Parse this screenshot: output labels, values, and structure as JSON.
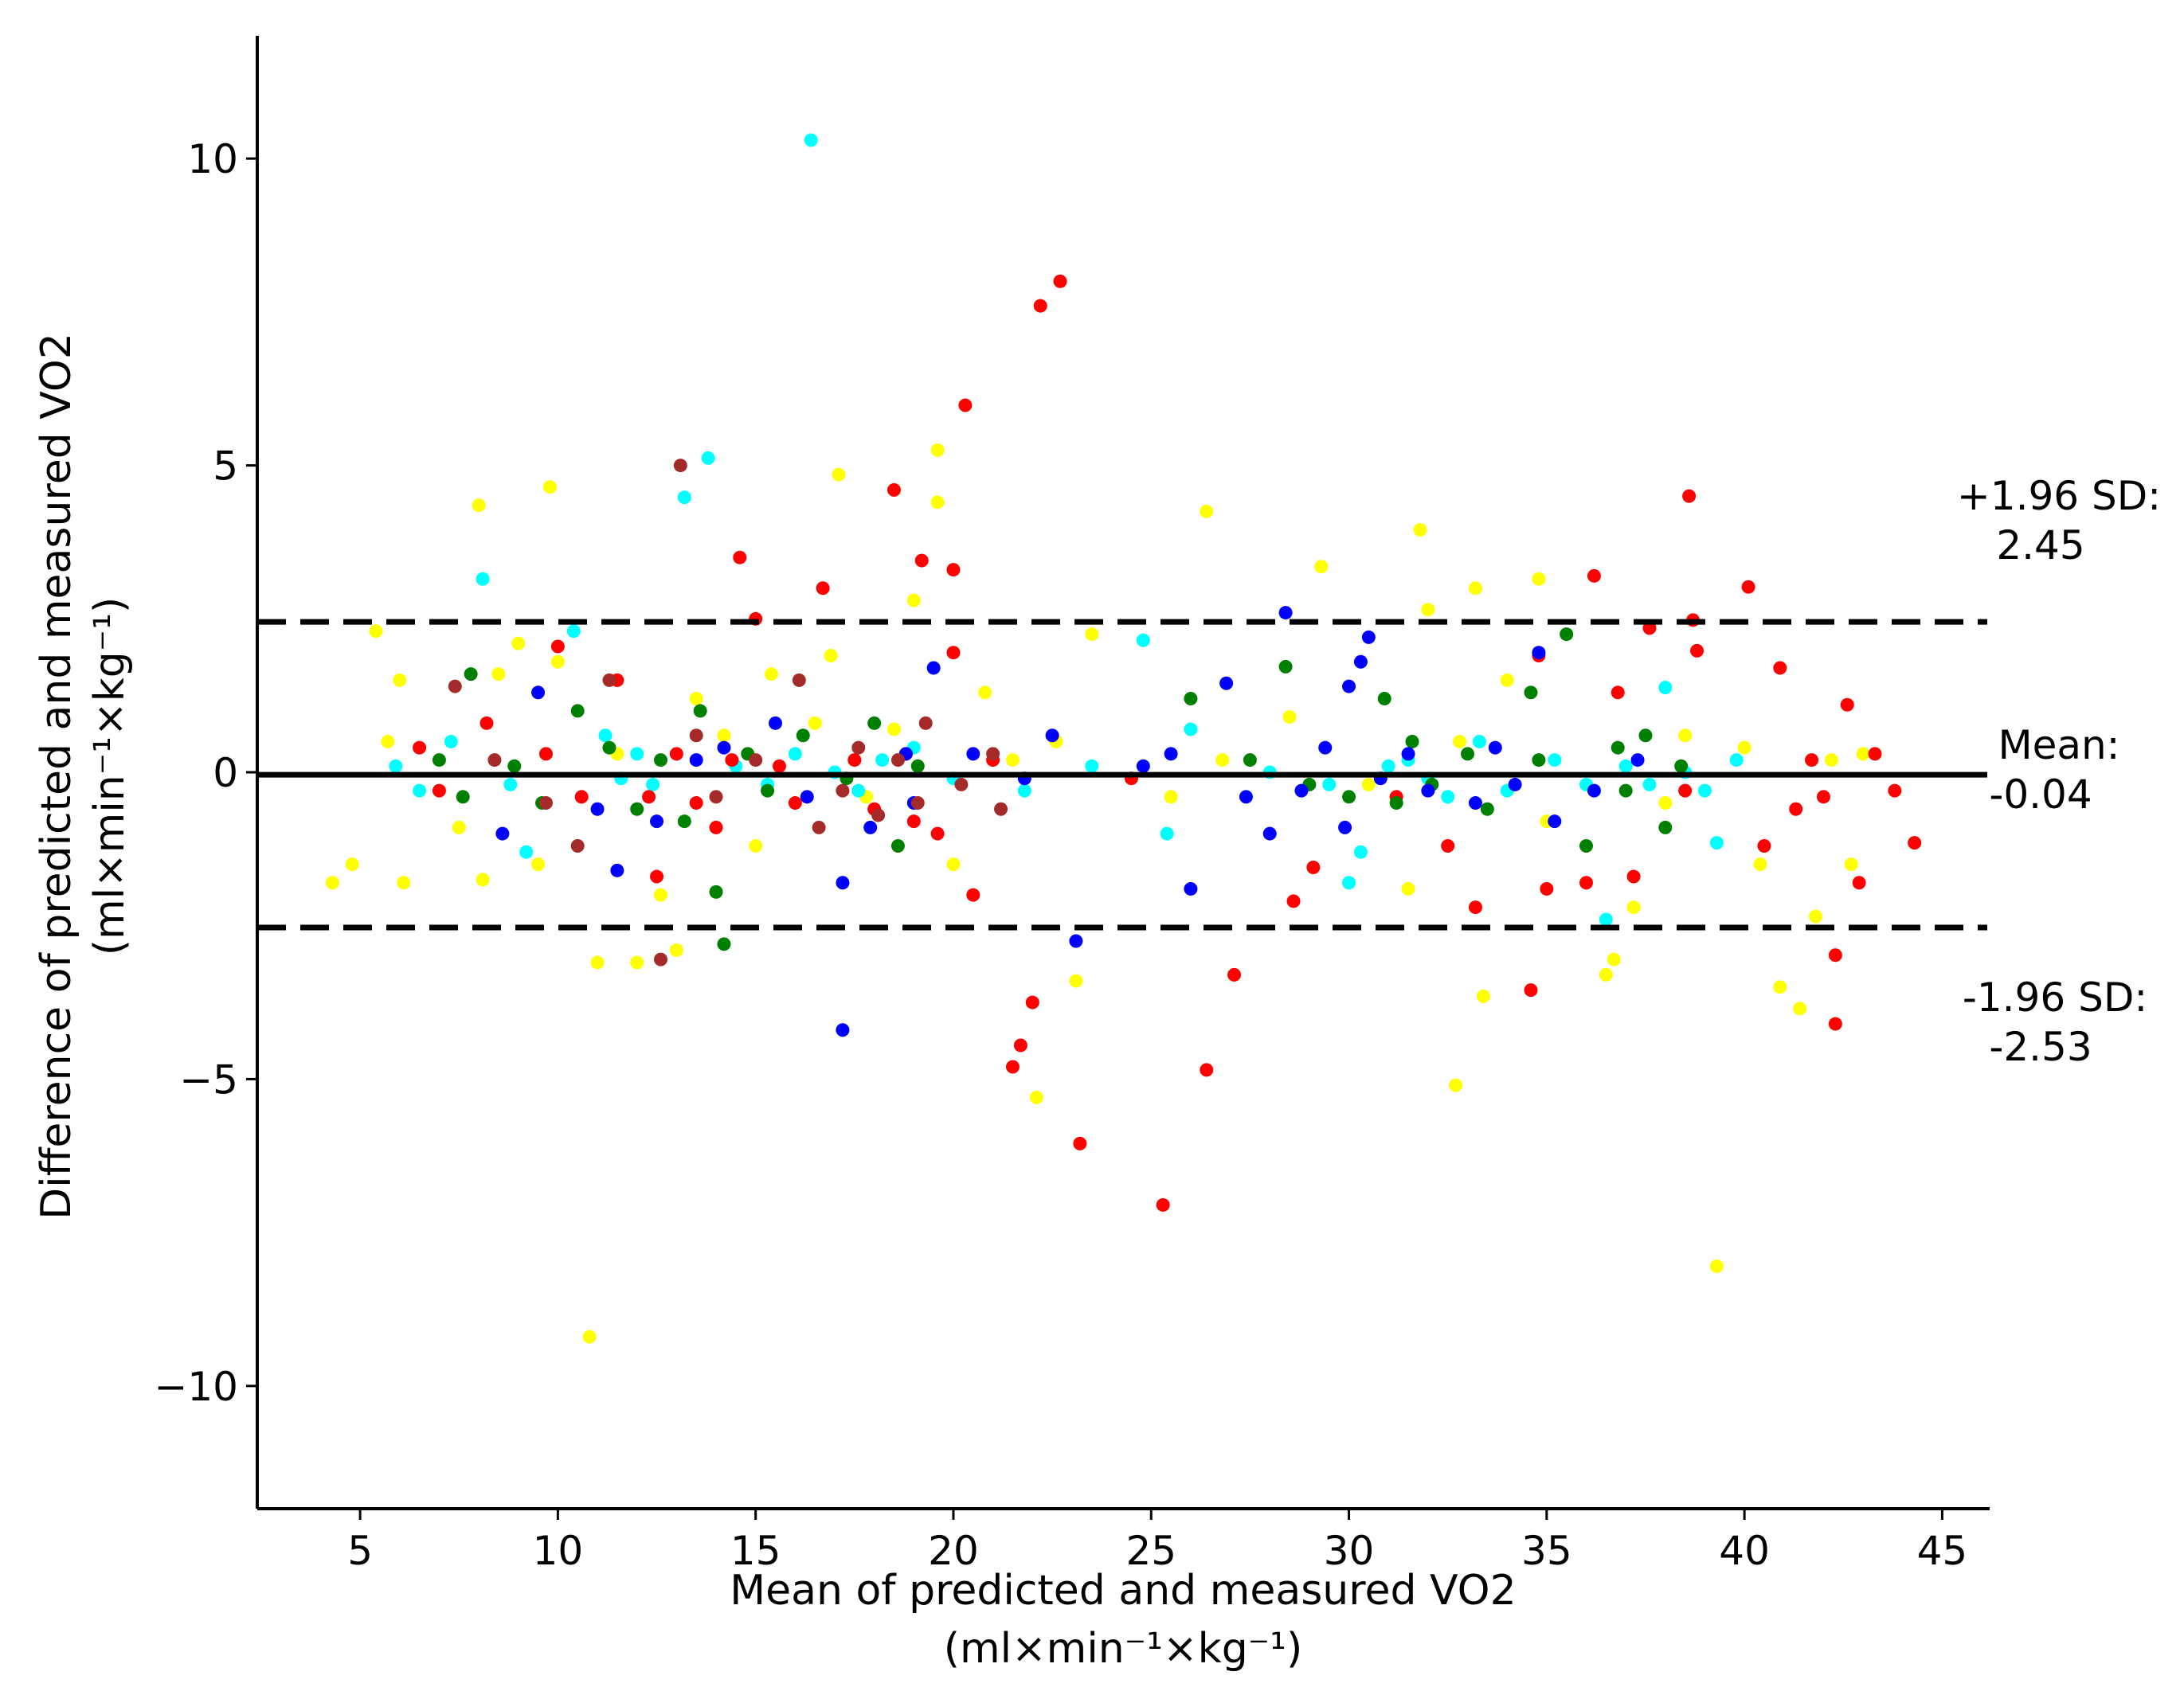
{
  "chart_data": {
    "type": "scatter",
    "title": "",
    "xlabel_line1": "Mean of predicted and measured VO2",
    "xlabel_line2": "(ml×min⁻¹×kg⁻¹)",
    "ylabel_line1": "Difference of predicted and measured VO2",
    "ylabel_line2": "(ml×min⁻¹×kg⁻¹)",
    "xlim": [
      2.4,
      46.2
    ],
    "ylim": [
      -12,
      12
    ],
    "xticks": [
      5,
      10,
      15,
      20,
      25,
      30,
      35,
      40,
      45
    ],
    "yticks": [
      10,
      5,
      0,
      -5,
      -10
    ],
    "ytick_labels": [
      "10",
      "5",
      "0",
      "−5",
      "−10"
    ],
    "grid": false,
    "reference_lines": [
      {
        "name": "upper-loa",
        "value": 2.45,
        "style": "dashed",
        "label_line1": "+1.96 SD:",
        "label_line2": "2.45"
      },
      {
        "name": "mean",
        "value": -0.04,
        "style": "solid",
        "label_line1": "Mean:",
        "label_line2": "-0.04"
      },
      {
        "name": "lower-loa",
        "value": -2.53,
        "style": "dashed",
        "label_line1": "-1.96 SD:",
        "label_line2": "-2.53"
      }
    ],
    "series": [
      {
        "name": "yellow",
        "color": "#ffff00",
        "points": [
          [
            4.3,
            -1.8
          ],
          [
            4.8,
            -1.5
          ],
          [
            5.4,
            2.3
          ],
          [
            5.7,
            0.5
          ],
          [
            6.0,
            1.5
          ],
          [
            6.1,
            -1.8
          ],
          [
            7.5,
            -0.9
          ],
          [
            8.0,
            4.35
          ],
          [
            8.1,
            -1.75
          ],
          [
            8.5,
            1.6
          ],
          [
            9.0,
            2.1
          ],
          [
            9.5,
            -1.5
          ],
          [
            9.8,
            4.65
          ],
          [
            10.0,
            1.8
          ],
          [
            11.0,
            -3.1
          ],
          [
            10.8,
            -9.2
          ],
          [
            11.5,
            0.3
          ],
          [
            12.0,
            -3.1
          ],
          [
            12.6,
            -2.0
          ],
          [
            13.0,
            -2.9
          ],
          [
            13.5,
            1.2
          ],
          [
            14.2,
            0.6
          ],
          [
            15.0,
            -1.2
          ],
          [
            15.4,
            1.6
          ],
          [
            16.5,
            0.8
          ],
          [
            16.9,
            1.9
          ],
          [
            17.1,
            4.85
          ],
          [
            17.8,
            -0.4
          ],
          [
            18.5,
            0.7
          ],
          [
            19.0,
            2.8
          ],
          [
            19.6,
            5.25
          ],
          [
            19.6,
            4.4
          ],
          [
            20.0,
            -1.5
          ],
          [
            20.8,
            1.3
          ],
          [
            21.5,
            0.2
          ],
          [
            22.1,
            -5.3
          ],
          [
            22.6,
            0.5
          ],
          [
            23.1,
            -3.4
          ],
          [
            23.5,
            2.25
          ],
          [
            25.5,
            -0.4
          ],
          [
            26.4,
            4.25
          ],
          [
            26.8,
            0.2
          ],
          [
            28.5,
            0.9
          ],
          [
            29.3,
            3.35
          ],
          [
            30.5,
            -0.2
          ],
          [
            31.5,
            -1.9
          ],
          [
            31.8,
            3.95
          ],
          [
            32.0,
            2.65
          ],
          [
            32.7,
            -5.1
          ],
          [
            32.8,
            0.5
          ],
          [
            33.2,
            3.0
          ],
          [
            33.4,
            -3.65
          ],
          [
            34.0,
            1.5
          ],
          [
            34.8,
            3.15
          ],
          [
            35.0,
            -0.8
          ],
          [
            36.5,
            -3.3
          ],
          [
            36.7,
            -3.05
          ],
          [
            37.2,
            -2.2
          ],
          [
            38.0,
            -0.5
          ],
          [
            38.5,
            0.6
          ],
          [
            39.3,
            -8.05
          ],
          [
            40.0,
            0.4
          ],
          [
            40.4,
            -1.5
          ],
          [
            40.9,
            -3.5
          ],
          [
            41.4,
            -3.85
          ],
          [
            41.8,
            -2.35
          ],
          [
            42.2,
            0.2
          ],
          [
            42.7,
            -1.5
          ],
          [
            43.0,
            0.3
          ]
        ]
      },
      {
        "name": "cyan",
        "color": "#00ffff",
        "points": [
          [
            5.9,
            0.1
          ],
          [
            6.5,
            -0.3
          ],
          [
            7.3,
            0.5
          ],
          [
            8.1,
            3.15
          ],
          [
            8.8,
            -0.2
          ],
          [
            9.2,
            -1.3
          ],
          [
            10.4,
            2.3
          ],
          [
            11.2,
            0.6
          ],
          [
            11.6,
            -0.1
          ],
          [
            12.0,
            0.3
          ],
          [
            12.4,
            -0.2
          ],
          [
            13.2,
            4.48
          ],
          [
            13.8,
            5.12
          ],
          [
            14.5,
            0.1
          ],
          [
            15.3,
            -0.2
          ],
          [
            16.0,
            0.3
          ],
          [
            16.4,
            10.3
          ],
          [
            17.0,
            0.0
          ],
          [
            17.6,
            -0.3
          ],
          [
            18.2,
            0.2
          ],
          [
            19.0,
            0.4
          ],
          [
            20.0,
            -0.1
          ],
          [
            21.8,
            -0.3
          ],
          [
            23.5,
            0.1
          ],
          [
            24.8,
            2.15
          ],
          [
            25.4,
            -1.0
          ],
          [
            26.0,
            0.7
          ],
          [
            28.0,
            0.0
          ],
          [
            29.5,
            -0.2
          ],
          [
            30.0,
            -1.8
          ],
          [
            30.3,
            -1.3
          ],
          [
            31.0,
            0.1
          ],
          [
            31.5,
            0.2
          ],
          [
            32.0,
            -0.1
          ],
          [
            32.5,
            -0.4
          ],
          [
            33.3,
            0.5
          ],
          [
            34.0,
            -0.3
          ],
          [
            35.2,
            0.2
          ],
          [
            36.0,
            -0.2
          ],
          [
            36.5,
            -2.4
          ],
          [
            37.0,
            0.1
          ],
          [
            37.6,
            -0.2
          ],
          [
            38.0,
            1.38
          ],
          [
            38.5,
            0.0
          ],
          [
            39.0,
            -0.3
          ],
          [
            39.3,
            -1.15
          ],
          [
            39.8,
            0.2
          ]
        ]
      },
      {
        "name": "red",
        "color": "#ff0000",
        "points": [
          [
            6.5,
            0.4
          ],
          [
            7.0,
            -0.3
          ],
          [
            8.2,
            0.8
          ],
          [
            9.7,
            0.3
          ],
          [
            10.0,
            2.05
          ],
          [
            10.6,
            -0.4
          ],
          [
            11.5,
            1.5
          ],
          [
            12.3,
            -0.4
          ],
          [
            12.5,
            -1.7
          ],
          [
            13.0,
            0.3
          ],
          [
            13.5,
            -0.5
          ],
          [
            14.0,
            -0.9
          ],
          [
            14.4,
            0.2
          ],
          [
            14.6,
            3.5
          ],
          [
            15.0,
            2.5
          ],
          [
            15.6,
            0.1
          ],
          [
            16.0,
            -0.5
          ],
          [
            16.7,
            3.0
          ],
          [
            17.5,
            0.2
          ],
          [
            18.0,
            -0.6
          ],
          [
            18.5,
            4.6
          ],
          [
            18.8,
            0.3
          ],
          [
            19.0,
            -0.8
          ],
          [
            19.2,
            3.45
          ],
          [
            19.6,
            -1.0
          ],
          [
            20.0,
            3.3
          ],
          [
            20.0,
            1.95
          ],
          [
            20.3,
            5.98
          ],
          [
            20.5,
            -2.0
          ],
          [
            21.0,
            0.2
          ],
          [
            21.5,
            -4.8
          ],
          [
            21.7,
            -4.45
          ],
          [
            22.0,
            -3.75
          ],
          [
            22.2,
            7.6
          ],
          [
            22.7,
            8.0
          ],
          [
            23.2,
            -6.05
          ],
          [
            24.5,
            -0.1
          ],
          [
            25.3,
            -7.05
          ],
          [
            26.4,
            -4.85
          ],
          [
            27.1,
            -3.3
          ],
          [
            28.6,
            -2.1
          ],
          [
            29.1,
            -1.55
          ],
          [
            31.2,
            -0.4
          ],
          [
            32.5,
            -1.2
          ],
          [
            33.2,
            -2.2
          ],
          [
            34.6,
            -3.55
          ],
          [
            34.8,
            1.9
          ],
          [
            35.0,
            -1.9
          ],
          [
            36.2,
            3.2
          ],
          [
            36.0,
            -1.8
          ],
          [
            36.8,
            1.3
          ],
          [
            37.2,
            -1.7
          ],
          [
            37.6,
            2.35
          ],
          [
            38.5,
            -0.3
          ],
          [
            38.7,
            2.48
          ],
          [
            38.6,
            4.5
          ],
          [
            38.8,
            1.98
          ],
          [
            40.1,
            3.02
          ],
          [
            40.5,
            -1.2
          ],
          [
            40.9,
            1.7
          ],
          [
            41.3,
            -0.6
          ],
          [
            41.7,
            0.2
          ],
          [
            42.0,
            -0.4
          ],
          [
            42.3,
            -2.98
          ],
          [
            42.3,
            -4.1
          ],
          [
            42.6,
            1.1
          ],
          [
            42.9,
            -1.8
          ],
          [
            43.3,
            0.3
          ],
          [
            43.8,
            -0.3
          ],
          [
            44.3,
            -1.15
          ]
        ]
      },
      {
        "name": "green",
        "color": "#008000",
        "points": [
          [
            7.0,
            0.2
          ],
          [
            7.6,
            -0.4
          ],
          [
            7.8,
            1.6
          ],
          [
            8.9,
            0.1
          ],
          [
            9.6,
            -0.5
          ],
          [
            10.5,
            1.0
          ],
          [
            11.3,
            0.4
          ],
          [
            12.0,
            -0.6
          ],
          [
            12.6,
            0.2
          ],
          [
            13.2,
            -0.8
          ],
          [
            13.6,
            1.0
          ],
          [
            14.0,
            -1.95
          ],
          [
            14.2,
            -2.8
          ],
          [
            14.8,
            0.3
          ],
          [
            15.3,
            -0.3
          ],
          [
            16.2,
            0.6
          ],
          [
            17.3,
            -0.1
          ],
          [
            18.0,
            0.8
          ],
          [
            18.6,
            -1.2
          ],
          [
            19.1,
            0.1
          ],
          [
            26.0,
            1.2
          ],
          [
            27.5,
            0.2
          ],
          [
            28.4,
            1.72
          ],
          [
            29.0,
            -0.2
          ],
          [
            30.0,
            -0.4
          ],
          [
            30.9,
            1.2
          ],
          [
            31.2,
            -0.5
          ],
          [
            31.6,
            0.5
          ],
          [
            32.1,
            -0.2
          ],
          [
            33.0,
            0.3
          ],
          [
            33.5,
            -0.6
          ],
          [
            34.6,
            1.3
          ],
          [
            34.8,
            0.2
          ],
          [
            35.5,
            2.25
          ],
          [
            36.0,
            -1.2
          ],
          [
            36.8,
            0.4
          ],
          [
            37.0,
            -0.3
          ],
          [
            37.5,
            0.6
          ],
          [
            38.0,
            -0.9
          ],
          [
            38.4,
            0.1
          ]
        ]
      },
      {
        "name": "blue",
        "color": "#0000ff",
        "points": [
          [
            8.6,
            -1.0
          ],
          [
            9.5,
            1.3
          ],
          [
            11.0,
            -0.6
          ],
          [
            11.5,
            -1.6
          ],
          [
            12.5,
            -0.8
          ],
          [
            13.5,
            0.2
          ],
          [
            14.2,
            0.4
          ],
          [
            15.5,
            0.8
          ],
          [
            16.3,
            -0.4
          ],
          [
            17.2,
            -4.2
          ],
          [
            17.2,
            -1.8
          ],
          [
            17.9,
            -0.9
          ],
          [
            18.8,
            0.3
          ],
          [
            19.0,
            -0.5
          ],
          [
            19.5,
            1.7
          ],
          [
            20.5,
            0.3
          ],
          [
            21.8,
            -0.1
          ],
          [
            22.5,
            0.6
          ],
          [
            23.1,
            -2.75
          ],
          [
            24.8,
            0.1
          ],
          [
            25.5,
            0.3
          ],
          [
            26.0,
            -1.9
          ],
          [
            26.9,
            1.45
          ],
          [
            27.4,
            -0.4
          ],
          [
            28.0,
            -1.0
          ],
          [
            28.4,
            2.6
          ],
          [
            28.8,
            -0.3
          ],
          [
            29.4,
            0.4
          ],
          [
            29.9,
            -0.9
          ],
          [
            30.0,
            1.4
          ],
          [
            30.3,
            1.8
          ],
          [
            30.5,
            2.2
          ],
          [
            30.8,
            -0.1
          ],
          [
            31.5,
            0.3
          ],
          [
            32.0,
            -0.3
          ],
          [
            33.2,
            -0.5
          ],
          [
            33.7,
            0.4
          ],
          [
            34.2,
            -0.2
          ],
          [
            34.8,
            1.95
          ],
          [
            35.2,
            -0.8
          ],
          [
            36.2,
            -0.3
          ],
          [
            37.3,
            0.2
          ]
        ]
      },
      {
        "name": "brown",
        "color": "#a52a2a",
        "points": [
          [
            7.4,
            1.4
          ],
          [
            8.4,
            0.2
          ],
          [
            9.7,
            -0.5
          ],
          [
            10.5,
            -1.2
          ],
          [
            11.3,
            1.5
          ],
          [
            12.6,
            -3.05
          ],
          [
            13.1,
            5.0
          ],
          [
            13.5,
            0.6
          ],
          [
            14.0,
            -0.4
          ],
          [
            15.0,
            0.2
          ],
          [
            16.1,
            1.5
          ],
          [
            16.6,
            -0.9
          ],
          [
            17.2,
            -0.3
          ],
          [
            17.6,
            0.4
          ],
          [
            18.1,
            -0.7
          ],
          [
            18.6,
            0.2
          ],
          [
            19.1,
            -0.5
          ],
          [
            19.3,
            0.8
          ],
          [
            20.2,
            -0.2
          ],
          [
            21.0,
            0.3
          ],
          [
            21.2,
            -0.6
          ]
        ]
      }
    ]
  }
}
